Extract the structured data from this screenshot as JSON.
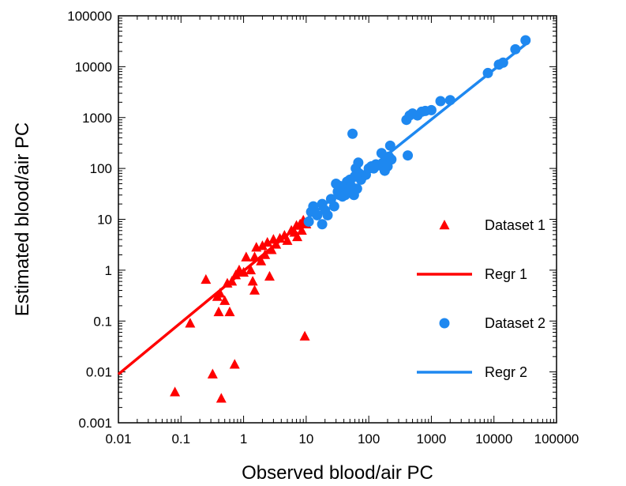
{
  "chart_data": {
    "type": "scatter",
    "xlabel": "Observed blood/air PC",
    "ylabel": "Estimated blood/air PC",
    "x_scale": "log",
    "y_scale": "log",
    "xlim": [
      0.01,
      100000
    ],
    "ylim": [
      0.001,
      100000
    ],
    "grid": false,
    "legend_position": "bottom-right",
    "x_tick_labels": [
      "0.01",
      "0.1",
      "1",
      "10",
      "100",
      "1000",
      "10000",
      "100000"
    ],
    "y_tick_labels": [
      "0.001",
      "0.01",
      "0.1",
      "1",
      "10",
      "100",
      "1000",
      "10000",
      "100000"
    ],
    "series": [
      {
        "name": "Dataset 1",
        "kind": "scatter",
        "marker": "triangle",
        "color": "#ff0000",
        "points": [
          [
            0.08,
            0.004
          ],
          [
            0.14,
            0.09
          ],
          [
            0.25,
            0.65
          ],
          [
            0.32,
            0.009
          ],
          [
            0.38,
            0.3
          ],
          [
            0.4,
            0.15
          ],
          [
            0.42,
            0.35
          ],
          [
            0.44,
            0.003
          ],
          [
            0.5,
            0.25
          ],
          [
            0.55,
            0.55
          ],
          [
            0.6,
            0.15
          ],
          [
            0.65,
            0.6
          ],
          [
            0.72,
            0.014
          ],
          [
            0.75,
            0.8
          ],
          [
            0.85,
            1.0
          ],
          [
            1.0,
            0.9
          ],
          [
            1.1,
            1.8
          ],
          [
            1.3,
            1.0
          ],
          [
            1.4,
            0.6
          ],
          [
            1.5,
            0.4
          ],
          [
            1.6,
            2.8
          ],
          [
            1.5,
            1.8
          ],
          [
            1.9,
            1.5
          ],
          [
            2.0,
            3.0
          ],
          [
            2.2,
            2.0
          ],
          [
            2.4,
            3.5
          ],
          [
            2.6,
            0.75
          ],
          [
            2.8,
            2.5
          ],
          [
            3.0,
            4.0
          ],
          [
            3.3,
            3.2
          ],
          [
            3.8,
            4.2
          ],
          [
            4.5,
            4.8
          ],
          [
            5.0,
            3.8
          ],
          [
            5.8,
            6.0
          ],
          [
            6.5,
            5.5
          ],
          [
            7.2,
            4.5
          ],
          [
            7.0,
            7.5
          ],
          [
            8.0,
            8.0
          ],
          [
            8.5,
            6.0
          ],
          [
            9.0,
            9.5
          ],
          [
            9.5,
            0.05
          ],
          [
            10.0,
            8.0
          ]
        ]
      },
      {
        "name": "Regr 1",
        "kind": "line",
        "color": "#ff0000",
        "points": [
          [
            0.01,
            0.009
          ],
          [
            10,
            10
          ]
        ]
      },
      {
        "name": "Dataset 2",
        "kind": "scatter",
        "marker": "circle",
        "color": "#1e88f0",
        "points": [
          [
            11,
            9
          ],
          [
            12,
            14
          ],
          [
            13,
            18
          ],
          [
            15,
            12
          ],
          [
            18,
            8
          ],
          [
            18,
            20
          ],
          [
            20,
            15
          ],
          [
            22,
            12
          ],
          [
            25,
            25
          ],
          [
            28,
            18
          ],
          [
            30,
            50
          ],
          [
            32,
            35
          ],
          [
            34,
            30
          ],
          [
            35,
            45
          ],
          [
            38,
            28
          ],
          [
            40,
            40
          ],
          [
            42,
            30
          ],
          [
            45,
            55
          ],
          [
            48,
            35
          ],
          [
            50,
            60
          ],
          [
            52,
            45
          ],
          [
            55,
            480
          ],
          [
            58,
            30
          ],
          [
            60,
            70
          ],
          [
            62,
            100
          ],
          [
            65,
            40
          ],
          [
            68,
            130
          ],
          [
            70,
            80
          ],
          [
            75,
            60
          ],
          [
            80,
            70
          ],
          [
            90,
            75
          ],
          [
            100,
            100
          ],
          [
            110,
            110
          ],
          [
            120,
            100
          ],
          [
            130,
            120
          ],
          [
            150,
            115
          ],
          [
            160,
            200
          ],
          [
            170,
            130
          ],
          [
            180,
            90
          ],
          [
            200,
            110
          ],
          [
            210,
            170
          ],
          [
            220,
            280
          ],
          [
            230,
            150
          ],
          [
            400,
            900
          ],
          [
            420,
            180
          ],
          [
            450,
            1100
          ],
          [
            500,
            1200
          ],
          [
            600,
            1100
          ],
          [
            700,
            1300
          ],
          [
            800,
            1350
          ],
          [
            1000,
            1400
          ],
          [
            1400,
            2100
          ],
          [
            2000,
            2200
          ],
          [
            8000,
            7500
          ],
          [
            12000,
            11000
          ],
          [
            14000,
            12000
          ],
          [
            22000,
            22000
          ],
          [
            32000,
            33000
          ]
        ]
      },
      {
        "name": "Regr 2",
        "kind": "line",
        "color": "#1e88f0",
        "points": [
          [
            10,
            10
          ],
          [
            35000,
            30000
          ]
        ]
      }
    ]
  }
}
